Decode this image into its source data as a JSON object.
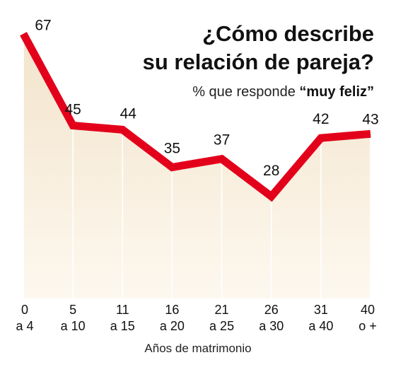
{
  "chart_data": {
    "type": "area",
    "title_line1": "¿Cómo describe",
    "title_line2": "su relación de pareja?",
    "subtitle_prefix": "% que responde",
    "subtitle_emphasis": "“muy feliz”",
    "xlabel": "Años de matrimonio",
    "ylabel": "",
    "categories": [
      {
        "top": "0",
        "bottom": "a 4"
      },
      {
        "top": "5",
        "bottom": "a 10"
      },
      {
        "top": "11",
        "bottom": "a 15"
      },
      {
        "top": "16",
        "bottom": "a 20"
      },
      {
        "top": "21",
        "bottom": "a 25"
      },
      {
        "top": "26",
        "bottom": "a 30"
      },
      {
        "top": "31",
        "bottom": "a 40"
      },
      {
        "top": "40",
        "bottom": "o +"
      }
    ],
    "values": [
      67,
      45,
      44,
      35,
      37,
      28,
      42,
      43
    ],
    "data_labels": [
      "67",
      "45",
      "44",
      "35",
      "37",
      "28",
      "42",
      "43"
    ],
    "colors": {
      "line": "#e3001b",
      "fill_top": "#f3e4cc",
      "fill_bottom": "#fdf8ef",
      "gridline": "#ffffff",
      "text": "#111111"
    },
    "grid": false,
    "legend": "none"
  }
}
